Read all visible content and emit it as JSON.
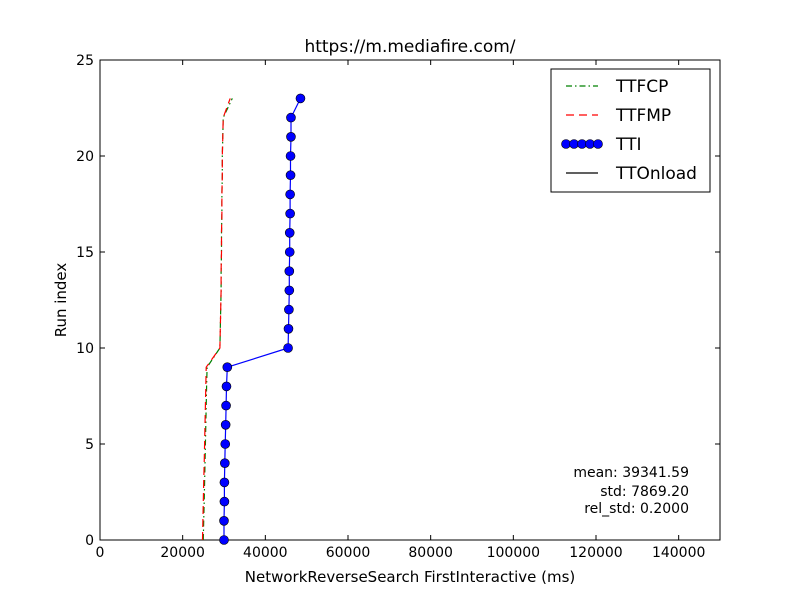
{
  "chart_data": {
    "type": "line",
    "title": "https://m.mediafire.com/",
    "xlabel": "NetworkReverseSearch FirstInteractive (ms)",
    "ylabel": "Run index",
    "xlim": [
      0,
      150000
    ],
    "ylim": [
      0,
      25
    ],
    "xticks": [
      0,
      20000,
      40000,
      60000,
      80000,
      100000,
      120000,
      140000
    ],
    "yticks": [
      0,
      5,
      10,
      15,
      20,
      25
    ],
    "legend_position": "top-right",
    "grid": false,
    "series": [
      {
        "name": "TTFCP",
        "color": "#008000",
        "style": "dashdot",
        "marker": "none",
        "x": [
          25000,
          25100,
          25200,
          25300,
          25400,
          25500,
          25600,
          25700,
          25800,
          25900,
          29000,
          29100,
          29200,
          29300,
          29300,
          29400,
          29400,
          29500,
          29500,
          29600,
          29600,
          29700,
          29800,
          32000
        ],
        "y": [
          0,
          1,
          2,
          3,
          4,
          5,
          6,
          7,
          8,
          9,
          10,
          11,
          12,
          13,
          14,
          15,
          16,
          17,
          18,
          19,
          20,
          21,
          22,
          23
        ]
      },
      {
        "name": "TTFMP",
        "color": "#ff0000",
        "style": "dashed",
        "marker": "none",
        "x": [
          24800,
          24900,
          25000,
          25100,
          25200,
          25300,
          25400,
          25500,
          25600,
          25700,
          29000,
          29100,
          29200,
          29300,
          29300,
          29400,
          29400,
          29500,
          29500,
          29600,
          29600,
          29700,
          29800,
          31500
        ],
        "y": [
          0,
          1,
          2,
          3,
          4,
          5,
          6,
          7,
          8,
          9,
          10,
          11,
          12,
          13,
          14,
          15,
          16,
          17,
          18,
          19,
          20,
          21,
          22,
          23
        ]
      },
      {
        "name": "TTI",
        "color": "#0000ff",
        "style": "solid",
        "marker": "circle",
        "x": [
          30000,
          30000,
          30100,
          30100,
          30200,
          30300,
          30400,
          30500,
          30600,
          30800,
          45500,
          45600,
          45700,
          45800,
          45800,
          45900,
          45900,
          46000,
          46000,
          46100,
          46100,
          46200,
          46200,
          48500
        ],
        "y": [
          0,
          1,
          2,
          3,
          4,
          5,
          6,
          7,
          8,
          9,
          10,
          11,
          12,
          13,
          14,
          15,
          16,
          17,
          18,
          19,
          20,
          21,
          22,
          23
        ]
      },
      {
        "name": "TTOnload",
        "color": "#000000",
        "style": "solid",
        "marker": "none",
        "x": [],
        "y": []
      }
    ],
    "annotations": [
      "mean: 39341.59",
      "std: 7869.20",
      "rel_std: 0.2000"
    ]
  }
}
